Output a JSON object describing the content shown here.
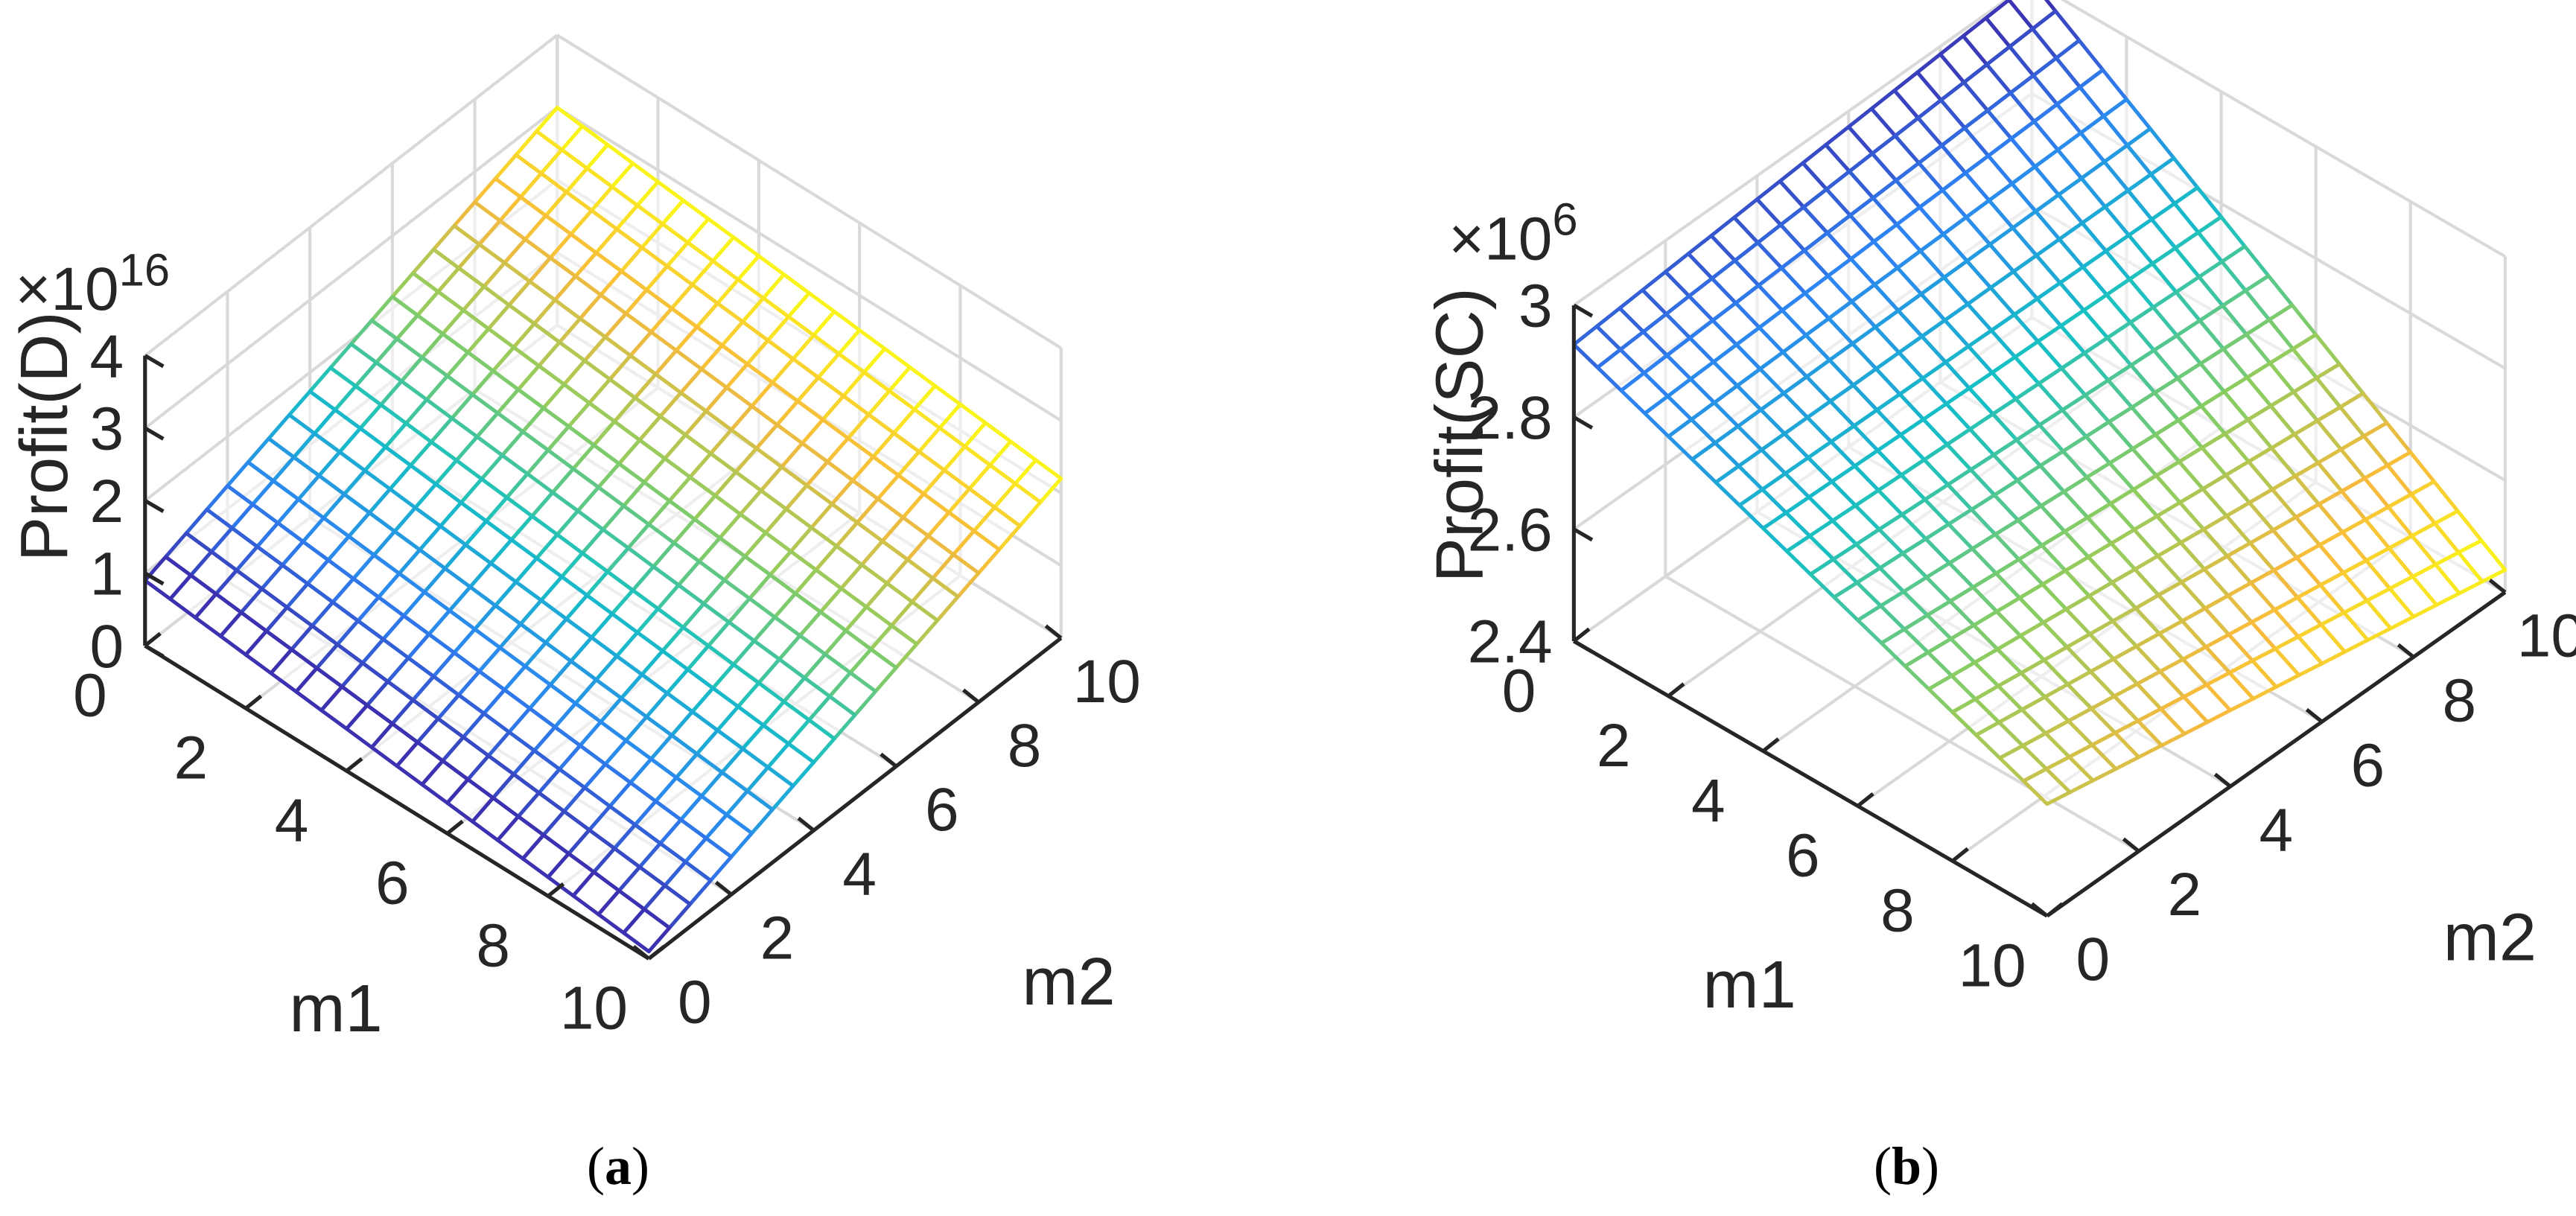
{
  "chart_data": [
    {
      "type": "surface",
      "caption_open": "(",
      "caption_letter": "a",
      "caption_close": ")",
      "xlabel": "m1",
      "ylabel": "m2",
      "zlabel": "Profit(D)",
      "z_multiplier_base": "×10",
      "z_multiplier_exp": "16",
      "xlim": [
        0,
        10
      ],
      "ylim": [
        0,
        10
      ],
      "zlim": [
        0,
        4
      ],
      "x_ticks": [
        "0",
        "2",
        "4",
        "6",
        "8",
        "10"
      ],
      "y_ticks": [
        "0",
        "2",
        "4",
        "6",
        "8",
        "10"
      ],
      "z_ticks": [
        "0",
        "1",
        "2",
        "3",
        "4"
      ],
      "z_tick_values": [
        0,
        1,
        2,
        3,
        4
      ],
      "corners": {
        "m1_0_m2_0": 0.9,
        "m1_10_m2_0": 0.1,
        "m1_0_m2_10": 3.0,
        "m1_10_m2_10": 2.2
      },
      "grid_n": 21,
      "grid": true,
      "colormap": "parula",
      "colormap_colors": [
        "#3e26a8",
        "#2e83f3",
        "#16c0c4",
        "#8ccd60",
        "#f8ba3d",
        "#f9fb15"
      ],
      "color_by": "m2",
      "color_reversed": false
    },
    {
      "type": "surface",
      "caption_open": "(",
      "caption_letter": "b",
      "caption_close": ")",
      "xlabel": "m1",
      "ylabel": "m2",
      "zlabel": "Profit(SC)",
      "z_multiplier_base": "×10",
      "z_multiplier_exp": "6",
      "xlim": [
        0,
        10
      ],
      "ylim": [
        0,
        10
      ],
      "zlim": [
        2.4,
        3.0
      ],
      "x_ticks": [
        "0",
        "2",
        "4",
        "6",
        "8",
        "10"
      ],
      "y_ticks": [
        "0",
        "2",
        "4",
        "6",
        "8",
        "10"
      ],
      "z_ticks": [
        "2.4",
        "2.6",
        "2.8",
        "3"
      ],
      "z_tick_values": [
        2.4,
        2.6,
        2.8,
        3.0
      ],
      "corners": {
        "m1_0_m2_0": 2.93,
        "m1_10_m2_0": 2.6,
        "m1_0_m2_10": 3.0,
        "m1_10_m2_10": 2.44
      },
      "grid_n": 21,
      "grid": true,
      "colormap": "parula",
      "colormap_colors": [
        "#3e26a8",
        "#2e83f3",
        "#16c0c4",
        "#8ccd60",
        "#f8ba3d",
        "#f9fb15"
      ],
      "color_by": "z",
      "color_reversed": false
    }
  ]
}
